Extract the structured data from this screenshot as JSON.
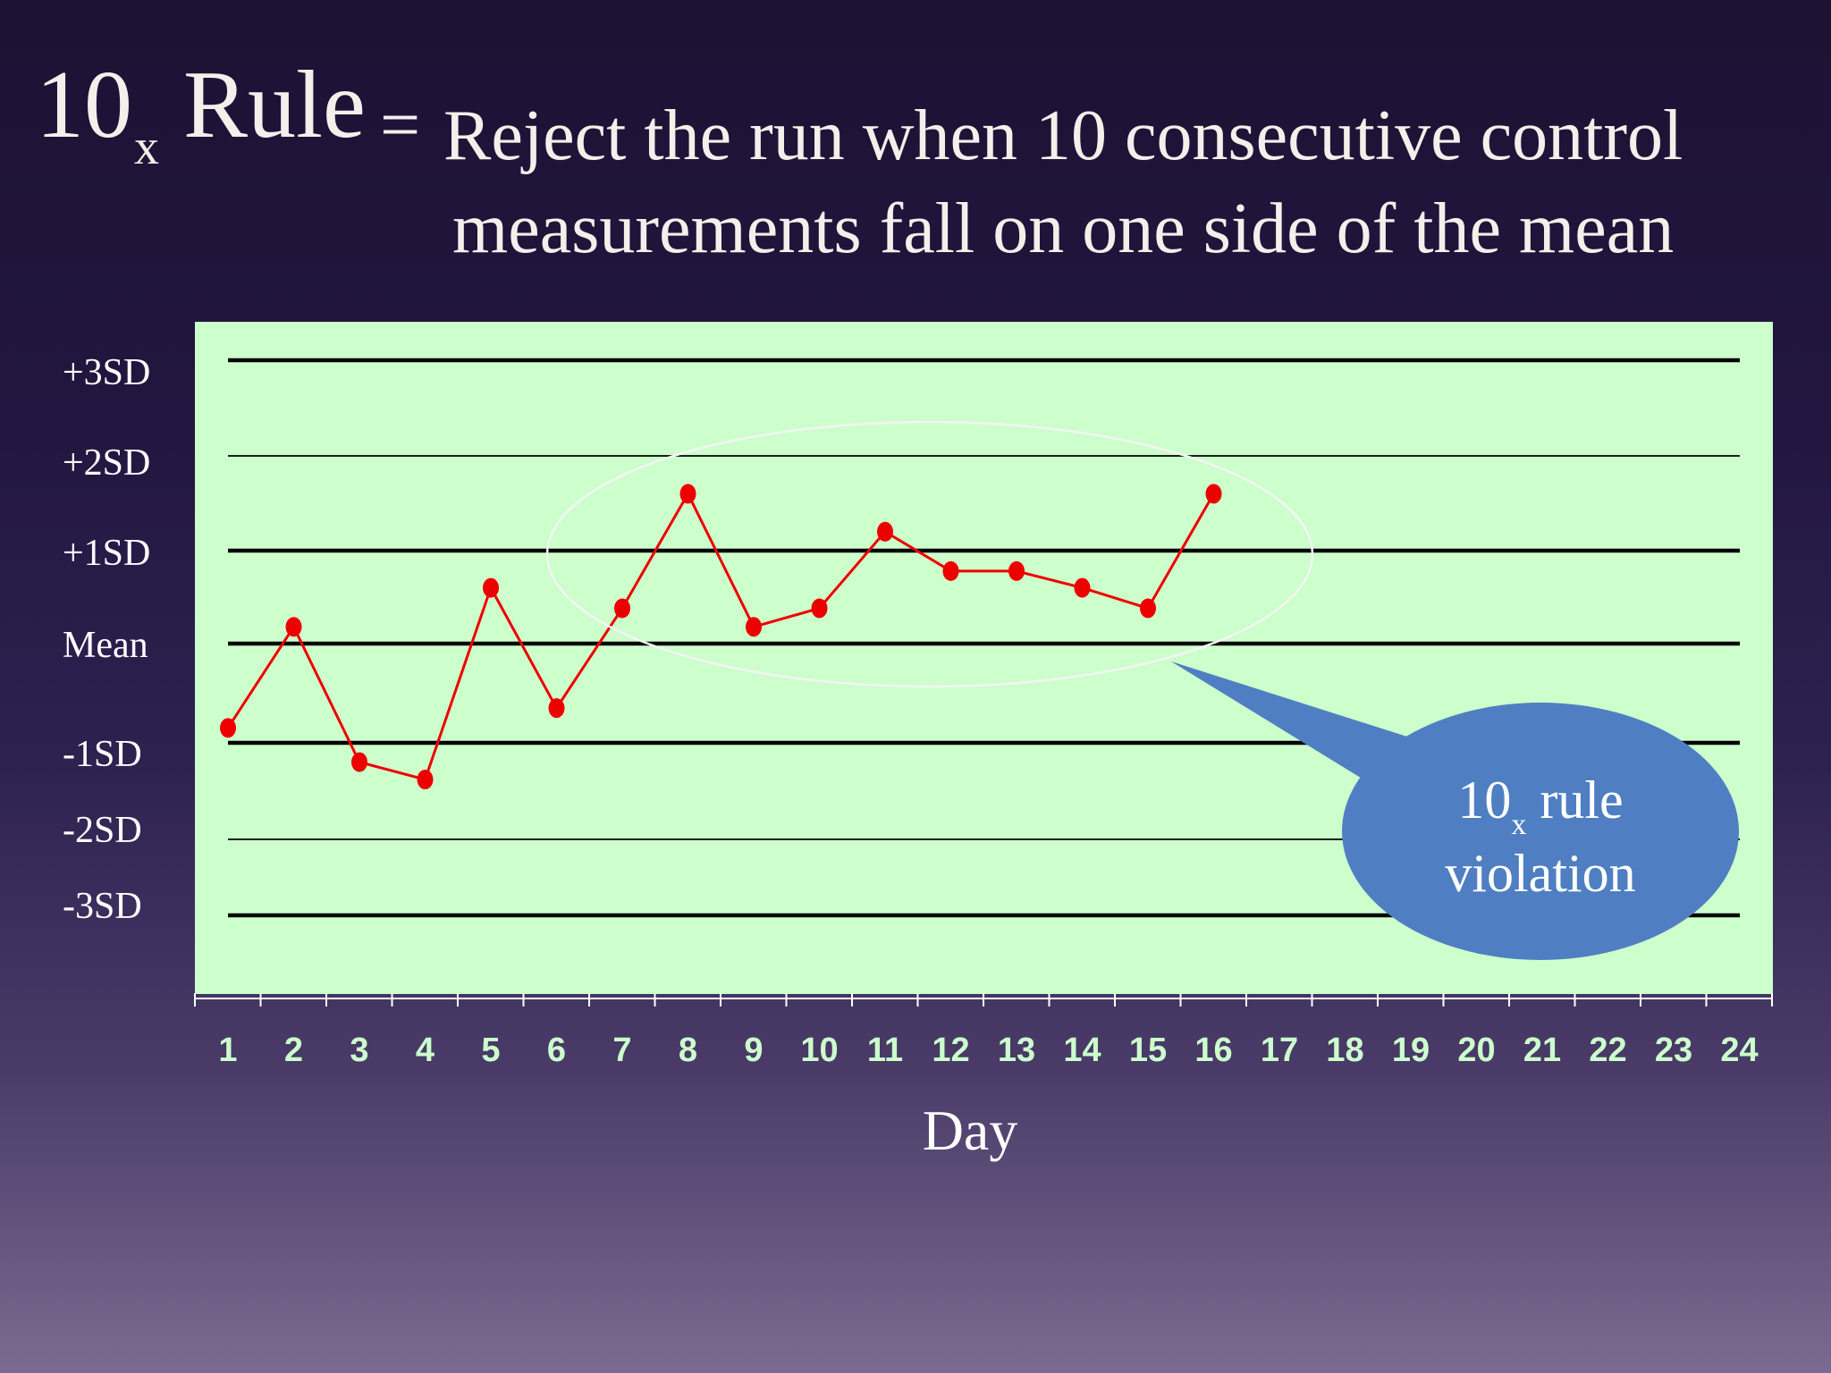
{
  "title": {
    "rule_main": "10",
    "rule_sub": "x",
    "rule_word": " Rule",
    "equals": "=",
    "line1": "Reject the run when 10 consecutive control",
    "line2": "measurements fall on one side of the mean"
  },
  "colors": {
    "plot_bg": "#ccffcc",
    "series": "#ee0000",
    "tick_label": "#ccffcc",
    "callout_fill": "#4f7fc2",
    "text": "#f6eeea"
  },
  "chart_data": {
    "type": "line",
    "x": [
      1,
      2,
      3,
      4,
      5,
      6,
      7,
      8,
      9,
      10,
      11,
      12,
      13,
      14,
      15,
      16
    ],
    "series": [
      {
        "values": [
          -0.85,
          0.18,
          -1.2,
          -1.38,
          0.6,
          -0.65,
          0.38,
          1.6,
          0.18,
          0.38,
          1.2,
          0.78,
          0.78,
          0.6,
          0.38,
          1.6
        ]
      }
    ],
    "categories": [
      "1",
      "2",
      "3",
      "4",
      "5",
      "6",
      "7",
      "8",
      "9",
      "10",
      "11",
      "12",
      "13",
      "14",
      "15",
      "16",
      "17",
      "18",
      "19",
      "20",
      "21",
      "22",
      "23",
      "24"
    ],
    "xlabel": "Day",
    "ylim": [
      -3,
      3
    ],
    "y_ticks": [
      {
        "label": "+3SD",
        "value": 3
      },
      {
        "label": "+2SD",
        "value": 2
      },
      {
        "label": "+1SD",
        "value": 1
      },
      {
        "label": "Mean",
        "value": 0
      },
      {
        "label": "-1SD",
        "value": -1
      },
      {
        "label": "-2SD",
        "value": -2
      },
      {
        "label": "-3SD",
        "value": -3
      }
    ],
    "annotation": {
      "main": "10",
      "sub": "x",
      "rest": " rule",
      "line2": "violation"
    }
  }
}
